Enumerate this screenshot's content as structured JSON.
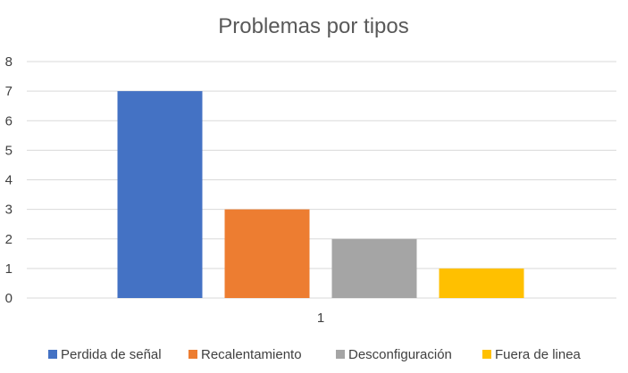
{
  "chart_data": {
    "type": "bar",
    "title": "Problemas por tipos",
    "categories": [
      "1"
    ],
    "xlabel": "",
    "ylabel": "",
    "ylim": [
      0,
      8
    ],
    "yticks": [
      "0",
      "1",
      "2",
      "3",
      "4",
      "5",
      "6",
      "7",
      "8"
    ],
    "grid": true,
    "legend_position": "bottom",
    "series": [
      {
        "name": "Perdida de señal",
        "values": [
          7
        ],
        "color": "#4472C4"
      },
      {
        "name": "Recalentamiento",
        "values": [
          3
        ],
        "color": "#ED7D31"
      },
      {
        "name": "Desconfiguración",
        "values": [
          2
        ],
        "color": "#A5A5A5"
      },
      {
        "name": "Fuera de linea",
        "values": [
          1
        ],
        "color": "#FFC000"
      }
    ]
  }
}
